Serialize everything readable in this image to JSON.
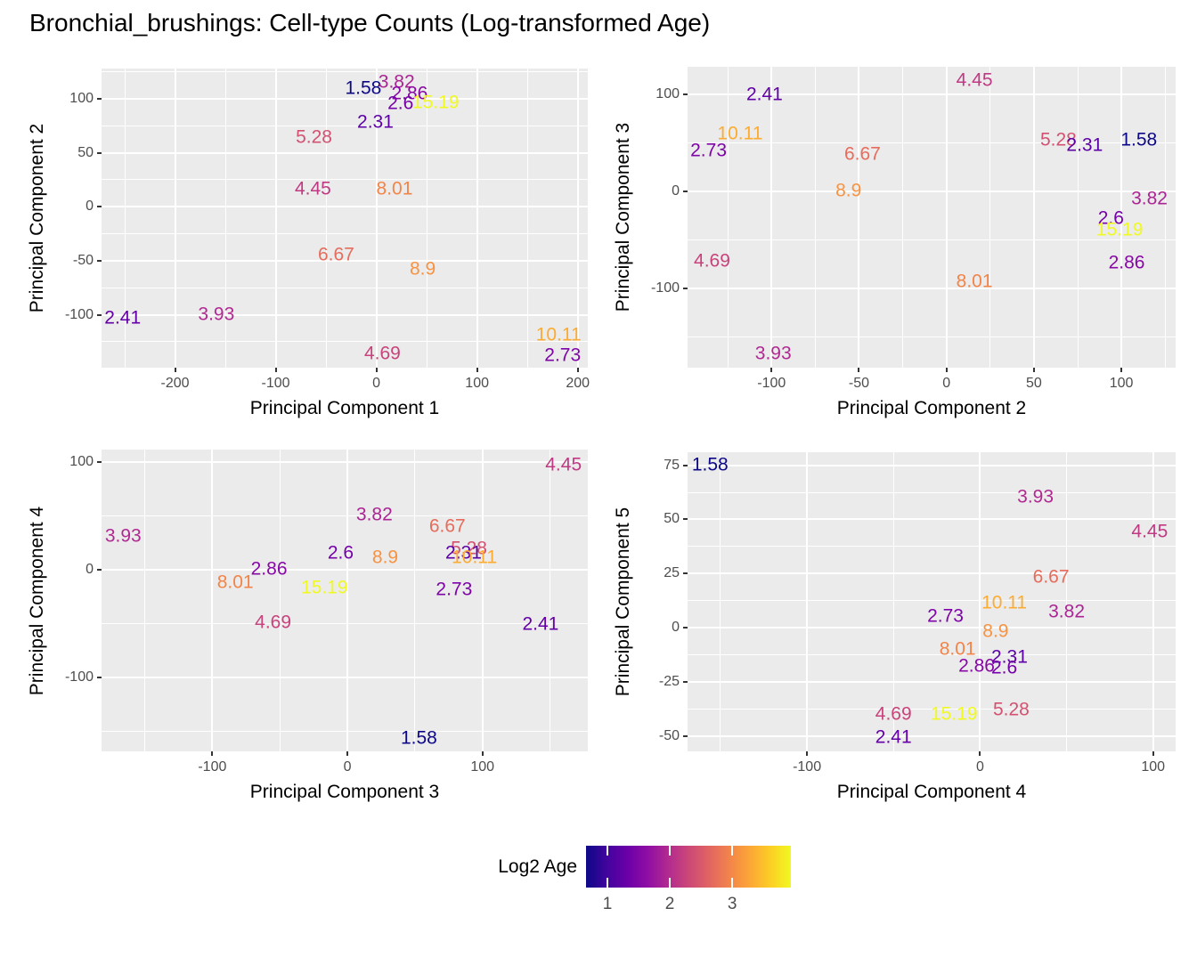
{
  "title": "Bronchial_brushings: Cell-type Counts (Log-transformed Age)",
  "legend": {
    "title": "Log2 Age",
    "ticks": [
      1,
      2,
      3
    ],
    "range": [
      0.657,
      3.94
    ],
    "gradient": [
      "#0d0887",
      "#41049d",
      "#6a00a8",
      "#8f0da4",
      "#b12a90",
      "#cc4778",
      "#e16462",
      "#f2844b",
      "#fca636",
      "#fcce25",
      "#f0f921"
    ]
  },
  "colors": {
    "panel_bg": "#ebebeb",
    "grid": "#ffffff",
    "tick_mark": "#333333",
    "tick_label": "#4d4d4d",
    "axis_title": "#000000"
  },
  "color_map": {
    "1.58": "#0d0887",
    "2.31": "#5c01a6",
    "2.41": "#6400a7",
    "2.6": "#7501a8",
    "2.73": "#7e03a8",
    "2.86": "#8808a6",
    "3.82": "#ab2494",
    "3.93": "#b02991",
    "4.45": "#c03a83",
    "4.69": "#c8437b",
    "5.28": "#d35171",
    "6.67": "#e66c5c",
    "8.01": "#f28449",
    "8.9": "#f79342",
    "10.11": "#fcab33",
    "15.19": "#f0f921"
  },
  "chart_data": [
    {
      "type": "scatter",
      "marker": "text-label",
      "xlabel": "Principal Component 1",
      "ylabel": "Principal Component 2",
      "xlim": [
        -273,
        210
      ],
      "ylim": [
        -149,
        128
      ],
      "xticks": [
        -200,
        -100,
        0,
        100,
        200
      ],
      "yticks": [
        -100,
        -50,
        0,
        50,
        100
      ],
      "grid": "major+minor",
      "points": [
        {
          "label": "1.58",
          "x": -13,
          "y": 109
        },
        {
          "label": "3.82",
          "x": 20,
          "y": 115
        },
        {
          "label": "2.86",
          "x": 33,
          "y": 104
        },
        {
          "label": "2.6",
          "x": 24,
          "y": 95
        },
        {
          "label": "15.19",
          "x": 59,
          "y": 96
        },
        {
          "label": "2.31",
          "x": -1,
          "y": 78
        },
        {
          "label": "5.28",
          "x": -62,
          "y": 64
        },
        {
          "label": "4.45",
          "x": -63,
          "y": 16
        },
        {
          "label": "8.01",
          "x": 18,
          "y": 16
        },
        {
          "label": "6.67",
          "x": -40,
          "y": -45
        },
        {
          "label": "8.9",
          "x": 46,
          "y": -58
        },
        {
          "label": "2.41",
          "x": -252,
          "y": -104
        },
        {
          "label": "3.93",
          "x": -159,
          "y": -100
        },
        {
          "label": "10.11",
          "x": 181,
          "y": -119
        },
        {
          "label": "4.69",
          "x": 6,
          "y": -137
        },
        {
          "label": "2.73",
          "x": 185,
          "y": -138
        }
      ]
    },
    {
      "type": "scatter",
      "marker": "text-label",
      "xlabel": "Principal Component 2",
      "ylabel": "Principal Component 3",
      "xlim": [
        -148,
        131
      ],
      "ylim": [
        -182,
        128
      ],
      "xticks": [
        -100,
        -50,
        0,
        50,
        100
      ],
      "yticks": [
        -100,
        0,
        100
      ],
      "grid": "major+minor",
      "points": [
        {
          "label": "2.41",
          "x": -104,
          "y": 99
        },
        {
          "label": "4.45",
          "x": 16,
          "y": 113
        },
        {
          "label": "10.11",
          "x": -118,
          "y": 58
        },
        {
          "label": "2.73",
          "x": -136,
          "y": 41
        },
        {
          "label": "6.67",
          "x": -48,
          "y": 37
        },
        {
          "label": "8.9",
          "x": -56,
          "y": 0
        },
        {
          "label": "5.28",
          "x": 64,
          "y": 52
        },
        {
          "label": "2.31",
          "x": 79,
          "y": 46
        },
        {
          "label": "1.58",
          "x": 110,
          "y": 52
        },
        {
          "label": "3.82",
          "x": 116,
          "y": -9
        },
        {
          "label": "2.6",
          "x": 94,
          "y": -29
        },
        {
          "label": "15.19",
          "x": 99,
          "y": -41
        },
        {
          "label": "2.86",
          "x": 103,
          "y": -75
        },
        {
          "label": "4.69",
          "x": -134,
          "y": -73
        },
        {
          "label": "8.01",
          "x": 16,
          "y": -94
        },
        {
          "label": "3.93",
          "x": -99,
          "y": -168
        }
      ]
    },
    {
      "type": "scatter",
      "marker": "text-label",
      "xlabel": "Principal Component 3",
      "ylabel": "Principal Component 4",
      "xlim": [
        -182,
        178
      ],
      "ylim": [
        -169,
        112
      ],
      "xticks": [
        -100,
        0,
        100
      ],
      "yticks": [
        -100,
        0,
        100
      ],
      "grid": "major+minor",
      "points": [
        {
          "label": "4.45",
          "x": 160,
          "y": 97
        },
        {
          "label": "3.93",
          "x": -166,
          "y": 31
        },
        {
          "label": "3.82",
          "x": 20,
          "y": 51
        },
        {
          "label": "6.67",
          "x": 74,
          "y": 40
        },
        {
          "label": "2.6",
          "x": -5,
          "y": 15
        },
        {
          "label": "8.9",
          "x": 28,
          "y": 11
        },
        {
          "label": "5.28",
          "x": 90,
          "y": 19
        },
        {
          "label": "2.31",
          "x": 86,
          "y": 15
        },
        {
          "label": "10.11",
          "x": 94,
          "y": 11
        },
        {
          "label": "2.86",
          "x": -58,
          "y": 0
        },
        {
          "label": "8.01",
          "x": -83,
          "y": -12
        },
        {
          "label": "15.19",
          "x": -17,
          "y": -17
        },
        {
          "label": "2.73",
          "x": 79,
          "y": -19
        },
        {
          "label": "4.69",
          "x": -55,
          "y": -50
        },
        {
          "label": "2.41",
          "x": 143,
          "y": -51
        },
        {
          "label": "1.58",
          "x": 53,
          "y": -157
        }
      ]
    },
    {
      "type": "scatter",
      "marker": "text-label",
      "xlabel": "Principal Component 4",
      "ylabel": "Principal Component 5",
      "xlim": [
        -169,
        113
      ],
      "ylim": [
        -57,
        81
      ],
      "xticks": [
        -100,
        0,
        100
      ],
      "yticks": [
        -50,
        -25,
        0,
        25,
        50,
        75
      ],
      "grid": "major+minor",
      "points": [
        {
          "label": "1.58",
          "x": -156,
          "y": 75
        },
        {
          "label": "3.93",
          "x": 32,
          "y": 60
        },
        {
          "label": "4.45",
          "x": 98,
          "y": 44
        },
        {
          "label": "6.67",
          "x": 41,
          "y": 23
        },
        {
          "label": "2.73",
          "x": -20,
          "y": 5
        },
        {
          "label": "10.11",
          "x": 14,
          "y": 11
        },
        {
          "label": "3.82",
          "x": 50,
          "y": 7
        },
        {
          "label": "8.9",
          "x": 9,
          "y": -2
        },
        {
          "label": "8.01",
          "x": -13,
          "y": -10
        },
        {
          "label": "2.31",
          "x": 17,
          "y": -14
        },
        {
          "label": "2.86",
          "x": -2,
          "y": -18
        },
        {
          "label": "2.6",
          "x": 14,
          "y": -19
        },
        {
          "label": "4.69",
          "x": -50,
          "y": -40
        },
        {
          "label": "15.19",
          "x": -15,
          "y": -40
        },
        {
          "label": "5.28",
          "x": 18,
          "y": -38
        },
        {
          "label": "2.41",
          "x": -50,
          "y": -51
        }
      ]
    }
  ]
}
